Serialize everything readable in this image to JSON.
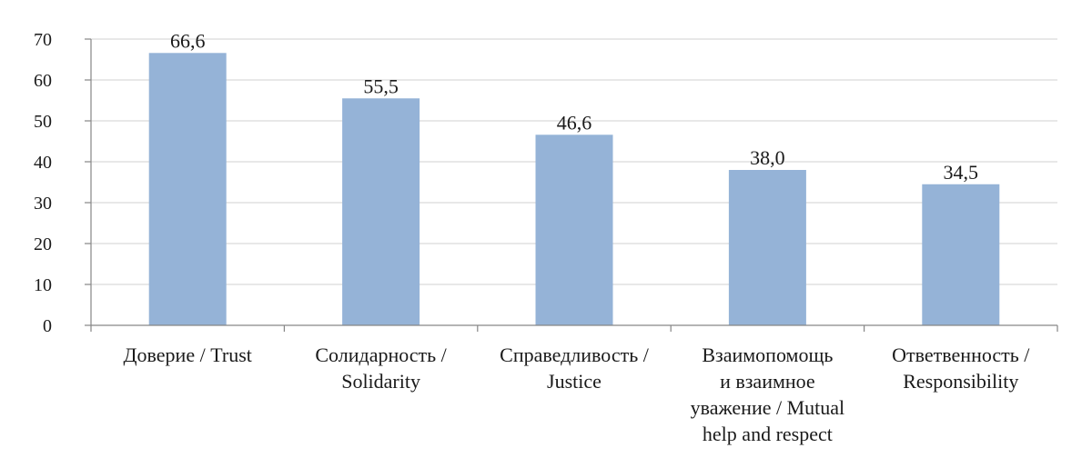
{
  "chart_data": {
    "type": "bar",
    "categories": [
      [
        "Доверие / Trust"
      ],
      [
        "Солидарность /",
        "Solidarity"
      ],
      [
        "Справедливость /",
        "Justice"
      ],
      [
        "Взаимопомощь",
        "и взаимное",
        "уважение / Mutual",
        "help and respect"
      ],
      [
        "Ответвенность /",
        "Responsibility"
      ]
    ],
    "values": [
      66.6,
      55.5,
      46.6,
      38.0,
      34.5
    ],
    "value_labels": [
      "66,6",
      "55,5",
      "46,6",
      "38,0",
      "34,5"
    ],
    "yticks": [
      0,
      10,
      20,
      30,
      40,
      50,
      60,
      70
    ],
    "ylim": [
      0,
      70
    ],
    "grid": true,
    "bar_color": "#95b3d7",
    "grid_color": "#d9d9d9",
    "axis_color": "#868686"
  }
}
